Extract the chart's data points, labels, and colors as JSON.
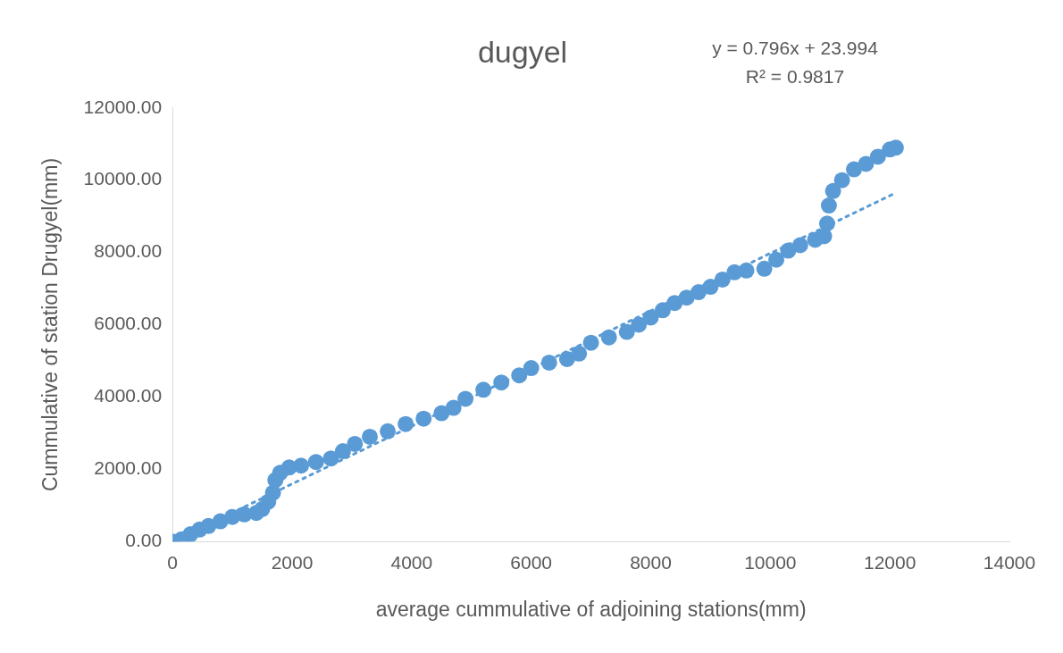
{
  "chart_data": {
    "type": "scatter",
    "title": "dugyel",
    "xlabel": "average cummulative of adjoining stations(mm)",
    "ylabel": "Cummulative of station Drugyel(mm)",
    "annotations": [
      "y = 0.796x + 23.994",
      "R² = 0.9817"
    ],
    "xlim": [
      0,
      14000
    ],
    "xticks": [
      0,
      2000,
      4000,
      6000,
      8000,
      10000,
      12000,
      14000
    ],
    "ylim": [
      0,
      12000
    ],
    "yticks": [
      {
        "value": 0,
        "label": "0.00"
      },
      {
        "value": 2000,
        "label": "2000.00"
      },
      {
        "value": 4000,
        "label": "4000.00"
      },
      {
        "value": 6000,
        "label": "6000.00"
      },
      {
        "value": 8000,
        "label": "8000.00"
      },
      {
        "value": 10000,
        "label": "10000.00"
      },
      {
        "value": 12000,
        "label": "12000.00"
      }
    ],
    "grid": false,
    "legend": false,
    "series": [
      {
        "type": "line",
        "line_style": "dotted",
        "marker": "none",
        "color": "#5b9bd5",
        "x": [
          0,
          12100
        ],
        "values": [
          0,
          9650
        ]
      },
      {
        "marker": "circle",
        "color": "#5b9bd5",
        "x": [
          0,
          150,
          300,
          450,
          600,
          800,
          1000,
          1200,
          1400,
          1500,
          1600,
          1680,
          1720,
          1800,
          1950,
          2150,
          2400,
          2650,
          2850,
          3050,
          3300,
          3600,
          3900,
          4200,
          4500,
          4700,
          4900,
          5200,
          5500,
          5800,
          6000,
          6300,
          6600,
          6800,
          7000,
          7300,
          7600,
          7800,
          8000,
          8200,
          8400,
          8600,
          8800,
          9000,
          9200,
          9400,
          9600,
          9900,
          10100,
          10300,
          10500,
          10750,
          10900,
          10950,
          10980,
          11050,
          11200,
          11400,
          11600,
          11800,
          12000,
          12100
        ],
        "values": [
          0,
          60,
          200,
          330,
          430,
          560,
          680,
          750,
          790,
          900,
          1100,
          1350,
          1700,
          1900,
          2050,
          2100,
          2200,
          2300,
          2500,
          2700,
          2900,
          3050,
          3250,
          3400,
          3550,
          3700,
          3950,
          4200,
          4400,
          4600,
          4800,
          4950,
          5050,
          5200,
          5500,
          5650,
          5800,
          6000,
          6200,
          6400,
          6600,
          6750,
          6900,
          7050,
          7250,
          7450,
          7500,
          7550,
          7800,
          8050,
          8200,
          8350,
          8450,
          8800,
          9300,
          9700,
          10000,
          10300,
          10450,
          10650,
          10850,
          10900
        ]
      }
    ]
  }
}
